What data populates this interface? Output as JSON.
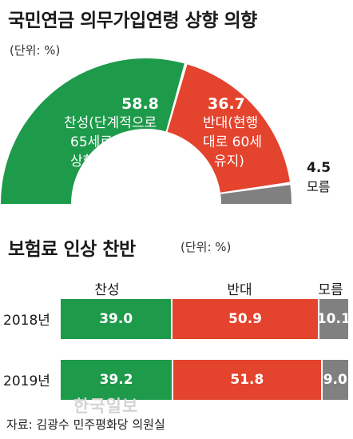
{
  "colors": {
    "agree": "#1e9a4b",
    "disagree": "#e4432d",
    "unknown": "#808080"
  },
  "chart_data": [
    {
      "type": "pie",
      "title": "국민연금 의무가입연령 상향 의향",
      "unit": "(단위: %)",
      "slices": [
        {
          "key": "agree",
          "name": "찬성(단계적으로 65세로 상향)",
          "label_lines": [
            "찬성(단계적으로",
            "65세로",
            "상향)"
          ],
          "value": 58.8,
          "value_text": "58.8"
        },
        {
          "key": "disagree",
          "name": "반대(현행 대로 60세 유지)",
          "label_lines": [
            "반대(현행",
            "대로 60세",
            "유지)"
          ],
          "value": 36.7,
          "value_text": "36.7"
        },
        {
          "key": "unknown",
          "name": "모름",
          "label_lines": [
            "모름"
          ],
          "value": 4.5,
          "value_text": "4.5"
        }
      ]
    },
    {
      "type": "bar",
      "title": "보험료 인상 찬반",
      "unit": "(단위: %)",
      "stacked": true,
      "orientation": "horizontal",
      "categories": [
        "2018년",
        "2019년"
      ],
      "series": [
        {
          "key": "agree",
          "name": "찬성",
          "values": [
            39.0,
            39.2
          ],
          "value_texts": [
            "39.0",
            "39.2"
          ]
        },
        {
          "key": "disagree",
          "name": "반대",
          "values": [
            50.9,
            51.8
          ],
          "value_texts": [
            "50.9",
            "51.8"
          ]
        },
        {
          "key": "unknown",
          "name": "모름",
          "values": [
            10.1,
            9.0
          ],
          "value_texts": [
            "10.1",
            "9.0"
          ]
        }
      ]
    }
  ],
  "watermark": "한국일보",
  "source": "자료: 김광수 민주평화당 의원실"
}
